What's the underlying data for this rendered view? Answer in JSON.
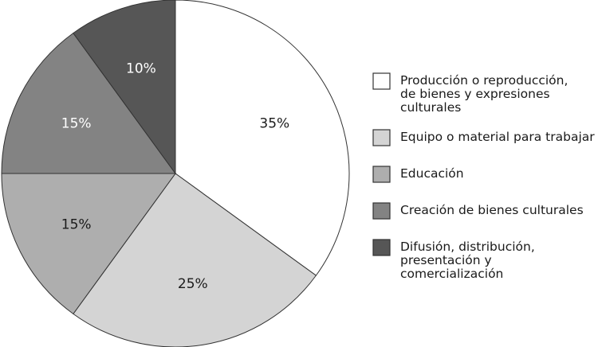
{
  "chart_data": {
    "type": "pie",
    "unit": "%",
    "series": [
      {
        "values": [
          35,
          25,
          15,
          15,
          10
        ]
      }
    ],
    "slices": [
      {
        "label": "Producción o reproducción, de bienes y expresiones culturales",
        "value": 35,
        "display": "35%",
        "color": "#ffffff",
        "text_color": "#1a1a1a"
      },
      {
        "label": "Equipo o material para trabajar",
        "value": 25,
        "display": "25%",
        "color": "#d4d4d4",
        "text_color": "#1a1a1a"
      },
      {
        "label": "Educación",
        "value": 15,
        "display": "15%",
        "color": "#aeaeae",
        "text_color": "#1a1a1a"
      },
      {
        "label": "Creación de bienes culturales",
        "value": 15,
        "display": "15%",
        "color": "#838383",
        "text_color": "#ffffff"
      },
      {
        "label": "Difusión, distribución, presentación y comercialización",
        "value": 10,
        "display": "10%",
        "color": "#565656",
        "text_color": "#ffffff"
      }
    ],
    "legend": {
      "placement": "right",
      "entries": [
        [
          "Producción o reproducción,",
          "de bienes y expresiones",
          "culturales"
        ],
        [
          "Equipo o material para trabajar"
        ],
        [
          "Educación"
        ],
        [
          "Creación de bienes culturales"
        ],
        [
          "Difusión, distribución,",
          "presentación y",
          "comercialización"
        ]
      ]
    },
    "start_angle": "12 o'clock",
    "direction": "clockwise",
    "stroke_color": "#333333"
  }
}
